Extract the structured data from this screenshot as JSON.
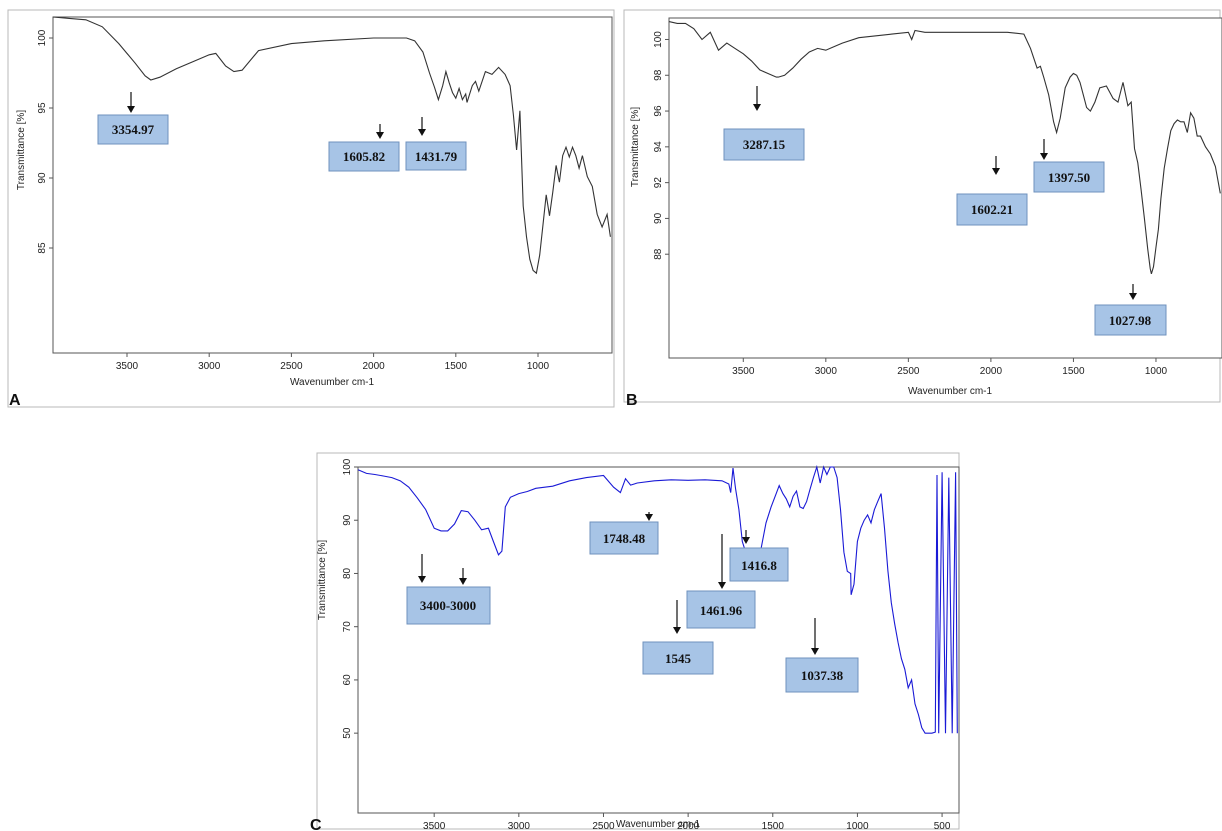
{
  "chart_data": [
    {
      "type": "line",
      "panel_label": "A",
      "title": "",
      "xlabel": "Wavenumber cm-1",
      "ylabel": "Transmittance [%]",
      "xlim": [
        3950,
        550
      ],
      "ylim": [
        77.5,
        101.5
      ],
      "x_ticks": [
        3500,
        3000,
        2500,
        2000,
        1500,
        1000
      ],
      "y_ticks": [
        85,
        90,
        95,
        100
      ],
      "line_color": "#333333",
      "series": [
        {
          "x": [
            3950,
            3850,
            3750,
            3650,
            3550,
            3450,
            3390,
            3354.97,
            3300,
            3200,
            3100,
            3000,
            2960,
            2900,
            2850,
            2800,
            2700,
            2500,
            2300,
            2000,
            1800,
            1750,
            1700,
            1660,
            1630,
            1605.82,
            1580,
            1560,
            1540,
            1520,
            1500,
            1480,
            1460,
            1440,
            1431.79,
            1400,
            1380,
            1360,
            1320,
            1280,
            1240,
            1200,
            1170,
            1150,
            1130,
            1110,
            1090,
            1070,
            1050,
            1030,
            1010,
            990,
            970,
            950,
            930,
            910,
            890,
            870,
            850,
            830,
            810,
            790,
            770,
            750,
            730,
            700,
            670,
            640,
            610,
            580,
            560
          ],
          "y": [
            101.5,
            101.4,
            101.3,
            100.8,
            99.6,
            98.2,
            97.3,
            97.0,
            97.2,
            97.8,
            98.3,
            98.8,
            98.9,
            98.0,
            97.6,
            97.7,
            99.1,
            99.6,
            99.8,
            100.0,
            100.0,
            99.8,
            99.0,
            97.5,
            96.5,
            95.6,
            96.6,
            97.6,
            96.8,
            96.1,
            95.7,
            96.4,
            95.6,
            96.0,
            95.4,
            96.6,
            96.9,
            96.2,
            97.6,
            97.4,
            97.9,
            97.4,
            96.6,
            94.5,
            92.0,
            94.8,
            88.0,
            85.8,
            84.2,
            83.4,
            83.2,
            84.5,
            86.6,
            88.8,
            87.3,
            89.0,
            90.9,
            89.7,
            91.6,
            92.2,
            91.5,
            92.2,
            91.6,
            90.7,
            91.6,
            90.1,
            89.4,
            87.4,
            86.5,
            87.4,
            85.8
          ]
        }
      ],
      "annotations": [
        {
          "text": "3354.97",
          "x": 3354.97
        },
        {
          "text": "1605.82",
          "x": 1605.82
        },
        {
          "text": "1431.79",
          "x": 1431.79
        }
      ]
    },
    {
      "type": "line",
      "panel_label": "B",
      "title": "",
      "xlabel": "Wavenumber cm-1",
      "ylabel": "Transmittance [%]",
      "xlim": [
        3950,
        600
      ],
      "ylim": [
        82.2,
        101.2
      ],
      "x_ticks": [
        3500,
        3000,
        2500,
        2000,
        1500,
        1000
      ],
      "y_ticks": [
        88,
        90,
        92,
        94,
        96,
        98,
        100
      ],
      "line_color": "#333333",
      "series": [
        {
          "x": [
            3950,
            3900,
            3850,
            3800,
            3750,
            3700,
            3650,
            3600,
            3550,
            3500,
            3450,
            3400,
            3350,
            3300,
            3287.15,
            3250,
            3200,
            3150,
            3100,
            3050,
            3000,
            2950,
            2900,
            2800,
            2600,
            2500,
            2480,
            2460,
            2400,
            2200,
            2000,
            1900,
            1800,
            1760,
            1720,
            1700,
            1680,
            1650,
            1620,
            1602.21,
            1580,
            1550,
            1520,
            1500,
            1480,
            1460,
            1440,
            1420,
            1397.5,
            1370,
            1340,
            1300,
            1260,
            1230,
            1200,
            1170,
            1150,
            1130,
            1110,
            1090,
            1070,
            1050,
            1035,
            1027.98,
            1015,
            1000,
            985,
            970,
            950,
            930,
            910,
            890,
            870,
            850,
            830,
            810,
            790,
            770,
            750,
            730,
            700,
            670,
            640,
            610
          ],
          "y": [
            101.0,
            100.9,
            100.9,
            100.6,
            100.0,
            100.4,
            99.4,
            99.8,
            99.5,
            99.2,
            98.8,
            98.3,
            98.1,
            97.9,
            97.9,
            98.0,
            98.4,
            98.9,
            99.3,
            99.5,
            99.4,
            99.6,
            99.8,
            100.1,
            100.3,
            100.4,
            100.0,
            100.5,
            100.4,
            100.4,
            100.4,
            100.4,
            100.3,
            99.5,
            98.4,
            98.5,
            97.9,
            96.9,
            95.4,
            94.8,
            95.6,
            97.3,
            97.9,
            98.1,
            98.0,
            97.6,
            96.9,
            96.2,
            96.0,
            96.5,
            97.3,
            97.4,
            96.7,
            96.5,
            97.6,
            96.3,
            96.5,
            93.9,
            93.1,
            91.6,
            90.0,
            88.3,
            87.2,
            86.9,
            87.3,
            88.4,
            89.4,
            91.1,
            92.8,
            93.9,
            94.9,
            95.3,
            95.5,
            95.4,
            95.4,
            94.8,
            95.9,
            95.6,
            94.6,
            94.6,
            94.0,
            93.6,
            92.9,
            91.4
          ]
        }
      ],
      "annotations": [
        {
          "text": "3287.15",
          "x": 3287.15
        },
        {
          "text": "1602.21",
          "x": 1602.21
        },
        {
          "text": "1397.50",
          "x": 1397.5
        },
        {
          "text": "1027.98",
          "x": 1027.98
        }
      ]
    },
    {
      "type": "line",
      "panel_label": "C",
      "title": "",
      "xlabel": "Wavenumber cm-1",
      "ylabel": "Transmittance [%]",
      "xlim": [
        3950,
        400
      ],
      "ylim": [
        35,
        100
      ],
      "x_ticks": [
        3500,
        3000,
        2500,
        2000,
        1500,
        1000,
        500
      ],
      "y_ticks": [
        50,
        60,
        70,
        80,
        90,
        100
      ],
      "line_color": "#1a1ad6",
      "series": [
        {
          "x": [
            3950,
            3900,
            3850,
            3800,
            3750,
            3700,
            3650,
            3600,
            3550,
            3500,
            3460,
            3420,
            3380,
            3340,
            3300,
            3260,
            3220,
            3180,
            3150,
            3120,
            3100,
            3080,
            3050,
            3000,
            2950,
            2900,
            2800,
            2700,
            2600,
            2500,
            2440,
            2400,
            2370,
            2340,
            2300,
            2200,
            2100,
            2000,
            1900,
            1800,
            1760,
            1748.48,
            1735,
            1720,
            1700,
            1680,
            1660,
            1640,
            1620,
            1600,
            1570,
            1540,
            1510,
            1480,
            1461.96,
            1440,
            1420,
            1400,
            1380,
            1360,
            1340,
            1320,
            1300,
            1280,
            1260,
            1240,
            1220,
            1200,
            1180,
            1160,
            1140,
            1120,
            1100,
            1080,
            1060,
            1040,
            1037.38,
            1020,
            1000,
            980,
            960,
            940,
            920,
            900,
            880,
            860,
            840,
            820,
            800,
            780,
            760,
            740,
            720,
            700,
            680,
            660,
            640,
            620,
            600,
            580,
            560,
            540,
            530,
            520,
            500,
            480,
            460,
            440,
            420,
            410
          ],
          "y": [
            99.5,
            98.8,
            98.6,
            98.3,
            98.0,
            97.4,
            96.2,
            94.2,
            92.0,
            88.5,
            88.0,
            88.0,
            89.3,
            91.8,
            91.6,
            90.0,
            88.2,
            88.5,
            86.0,
            83.5,
            84.2,
            92.5,
            94.3,
            95.0,
            95.4,
            96.0,
            96.4,
            97.4,
            98.0,
            98.4,
            96.2,
            95.2,
            97.8,
            96.6,
            97.0,
            97.4,
            97.6,
            97.5,
            97.6,
            97.4,
            96.8,
            95.2,
            99.8,
            96.0,
            92.0,
            86.0,
            84.0,
            84.5,
            83.5,
            80.5,
            84.5,
            89.5,
            92.5,
            95.0,
            96.5,
            95.0,
            94.0,
            92.5,
            94.5,
            95.5,
            92.5,
            92.2,
            93.5,
            95.8,
            98.0,
            100.0,
            97.0,
            100.0,
            98.6,
            100.0,
            100.0,
            98.0,
            92.0,
            84.0,
            80.4,
            80.0,
            76.0,
            78.0,
            86.0,
            88.5,
            90.0,
            91.0,
            89.5,
            92.0,
            93.5,
            95.0,
            88.5,
            80.5,
            74.5,
            70.5,
            67.0,
            64.0,
            62.0,
            58.5,
            60.0,
            55.5,
            53.5,
            51.0,
            50.0,
            50.0,
            50.0,
            50.2,
            98.5,
            50.0,
            99.0,
            50.0,
            98.0,
            50.0,
            99.0,
            50.0
          ]
        }
      ],
      "annotations": [
        {
          "text": "3400-3000",
          "x": 3200
        },
        {
          "text": "1748.48",
          "x": 1748.48
        },
        {
          "text": "1416.8",
          "x": 1416.8
        },
        {
          "text": "1461.96",
          "x": 1461.96
        },
        {
          "text": "1545",
          "x": 1545
        },
        {
          "text": "1037.38",
          "x": 1037.38
        }
      ]
    }
  ]
}
